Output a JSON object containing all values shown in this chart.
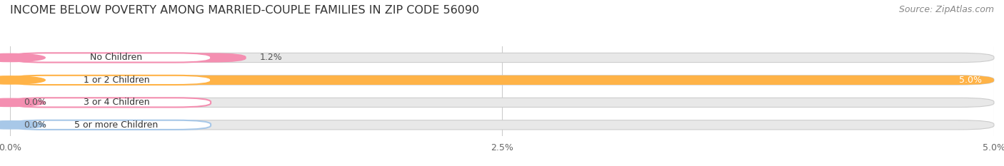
{
  "title": "INCOME BELOW POVERTY AMONG MARRIED-COUPLE FAMILIES IN ZIP CODE 56090",
  "source": "Source: ZipAtlas.com",
  "categories": [
    "No Children",
    "1 or 2 Children",
    "3 or 4 Children",
    "5 or more Children"
  ],
  "values": [
    1.2,
    5.0,
    0.0,
    0.0
  ],
  "bar_colors": [
    "#f48fb1",
    "#ffb347",
    "#f48fb1",
    "#a8c8e8"
  ],
  "xlim": [
    0,
    5.0
  ],
  "xticks": [
    0.0,
    2.5,
    5.0
  ],
  "xtick_labels": [
    "0.0%",
    "2.5%",
    "5.0%"
  ],
  "background_color": "#ffffff",
  "bar_bg_color": "#e8e8e8",
  "title_fontsize": 11.5,
  "source_fontsize": 9,
  "label_fontsize": 9,
  "value_fontsize": 9
}
